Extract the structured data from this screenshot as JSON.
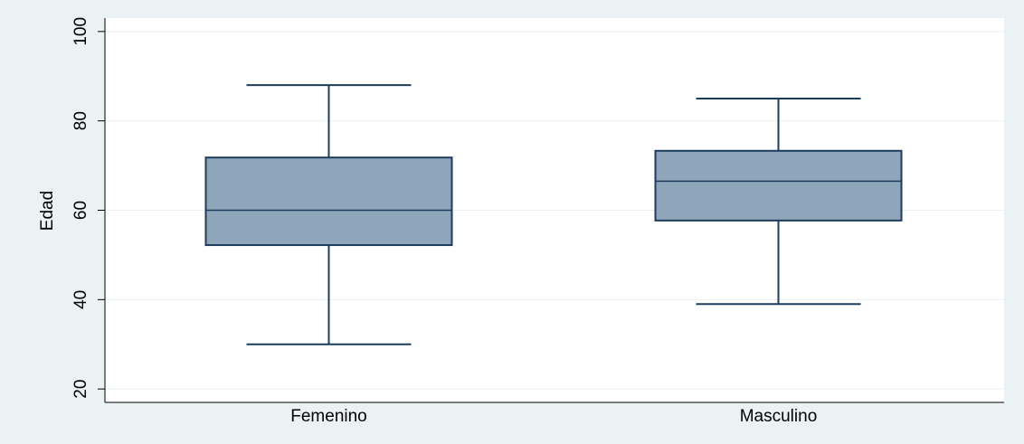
{
  "chart_data": {
    "type": "boxplot",
    "title": "",
    "xlabel": "",
    "ylabel": "Edad",
    "ylim": [
      17,
      103
    ],
    "yticks": [
      20,
      40,
      60,
      80,
      100
    ],
    "grid": true,
    "categories": [
      "Femenino",
      "Masculino"
    ],
    "boxes": [
      {
        "category": "Femenino",
        "whisker_low": 30,
        "q1": 52.2,
        "median": 60,
        "q3": 71.8,
        "whisker_high": 88
      },
      {
        "category": "Masculino",
        "whisker_low": 39,
        "q1": 57.7,
        "median": 66.5,
        "q3": 73.3,
        "whisker_high": 85
      }
    ]
  },
  "colors": {
    "outer_background": "#eaf2f3",
    "plot_background": "#ffffff",
    "box_fill": "#8fa5b9",
    "box_stroke": "#1b3c5c",
    "grid": "#eaf2f3",
    "axis": "#000000"
  }
}
